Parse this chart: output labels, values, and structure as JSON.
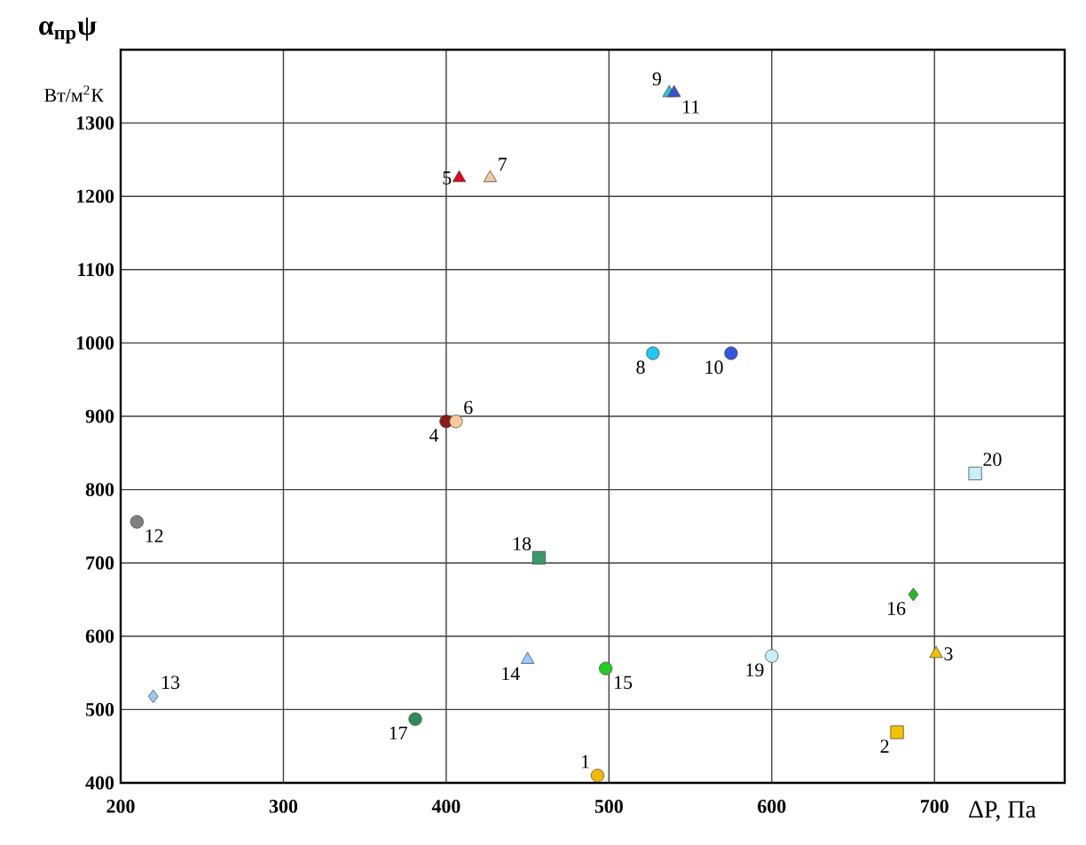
{
  "chart_data": {
    "type": "scatter",
    "ylabel": "α$_{пр}$ψ",
    "xlabel": "ΔP, Па",
    "annotations": [
      "Вт/м$^{2}$К"
    ],
    "xlim": [
      200,
      780
    ],
    "ylim": [
      400,
      1400
    ],
    "xticks": [
      200,
      300,
      400,
      500,
      600,
      700
    ],
    "yticks": [
      400,
      500,
      600,
      700,
      800,
      900,
      1000,
      1100,
      1200,
      1300
    ],
    "grid": true,
    "series": [
      {
        "name": "1",
        "color": "#f5b800",
        "marker": "circle",
        "x": [
          493
        ],
        "values": [
          410
        ]
      },
      {
        "name": "2",
        "color": "#f5c400",
        "marker": "square",
        "x": [
          677
        ],
        "values": [
          469
        ]
      },
      {
        "name": "3",
        "color": "#f5c000",
        "marker": "triangle",
        "x": [
          701
        ],
        "values": [
          576
        ]
      },
      {
        "name": "4",
        "color": "#8b1a1a",
        "marker": "circle",
        "x": [
          400
        ],
        "values": [
          893
        ]
      },
      {
        "name": "5",
        "color": "#e8001c",
        "marker": "triangle",
        "x": [
          408
        ],
        "values": [
          1225
        ]
      },
      {
        "name": "6",
        "color": "#fbc99a",
        "marker": "circle",
        "x": [
          406
        ],
        "values": [
          893
        ]
      },
      {
        "name": "7",
        "color": "#f5c8a0",
        "marker": "triangle",
        "x": [
          427
        ],
        "values": [
          1225
        ]
      },
      {
        "name": "8",
        "color": "#1ec8f0",
        "marker": "circle",
        "x": [
          527
        ],
        "values": [
          986
        ]
      },
      {
        "name": "9",
        "color": "#33c0e0",
        "marker": "triangle",
        "x": [
          537
        ],
        "values": [
          1341
        ]
      },
      {
        "name": "10",
        "color": "#3355dd",
        "marker": "circle",
        "x": [
          575
        ],
        "values": [
          986
        ]
      },
      {
        "name": "11",
        "color": "#3355cc",
        "marker": "triangle",
        "x": [
          540
        ],
        "values": [
          1341
        ]
      },
      {
        "name": "12",
        "color": "#808080",
        "marker": "circle",
        "x": [
          210
        ],
        "values": [
          756
        ]
      },
      {
        "name": "13",
        "color": "#9ec8f0",
        "marker": "diamond",
        "x": [
          220
        ],
        "values": [
          518
        ]
      },
      {
        "name": "14",
        "color": "#99ccff",
        "marker": "triangle",
        "x": [
          450
        ],
        "values": [
          568
        ]
      },
      {
        "name": "15",
        "color": "#22cc22",
        "marker": "circle",
        "x": [
          498
        ],
        "values": [
          556
        ]
      },
      {
        "name": "16",
        "color": "#22bb22",
        "marker": "diamond",
        "x": [
          687
        ],
        "values": [
          657
        ]
      },
      {
        "name": "17",
        "color": "#2e8b57",
        "marker": "circle",
        "x": [
          381
        ],
        "values": [
          487
        ]
      },
      {
        "name": "18",
        "color": "#3a9a6a",
        "marker": "square",
        "x": [
          457
        ],
        "values": [
          707
        ]
      },
      {
        "name": "19",
        "color": "#c8f0f8",
        "marker": "circle",
        "x": [
          600
        ],
        "values": [
          573
        ]
      },
      {
        "name": "20",
        "color": "#c8f0f8",
        "marker": "square",
        "x": [
          725
        ],
        "values": [
          822
        ]
      }
    ]
  }
}
